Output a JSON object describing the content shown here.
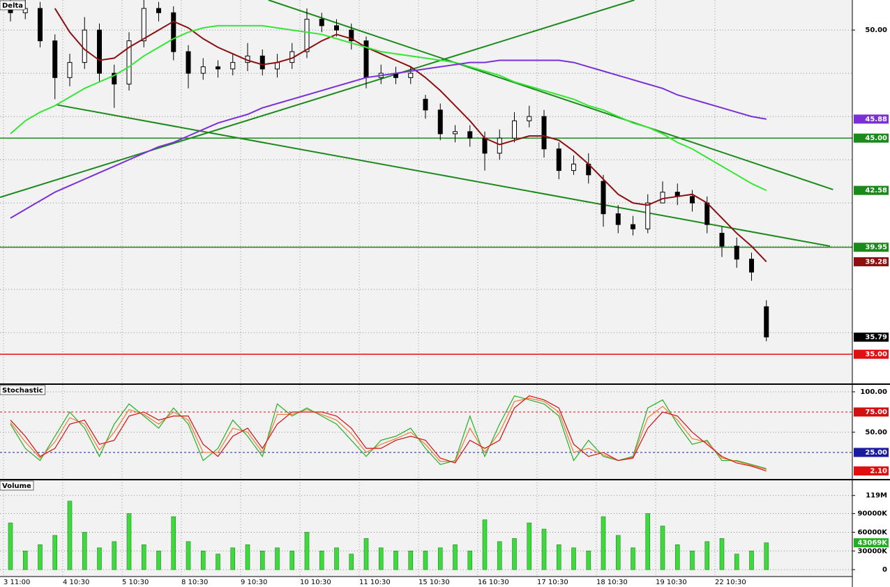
{
  "chart_data": [
    {
      "type": "candlestick",
      "title": "Delta",
      "ylim": [
        33.65,
        51.39
      ],
      "yticks": [
        {
          "value": 50,
          "label": "50.00"
        }
      ],
      "grid_levels": [
        36,
        38,
        40,
        42,
        44,
        46,
        48
      ],
      "up_color": "#ffffff",
      "down_color": "#000000",
      "open": [
        51.2,
        50.8,
        51.0,
        49.5,
        47.8,
        48.5,
        50.0,
        48.0,
        47.5,
        49.5,
        51.0,
        50.8,
        49.0,
        48.0,
        48.3,
        48.2,
        48.5,
        48.8,
        48.2,
        48.5,
        49.0,
        50.5,
        50.2,
        50.0,
        49.5,
        47.8,
        48.0,
        47.8,
        46.8,
        46.3,
        45.2,
        45.3,
        45.0,
        44.3,
        45.0,
        45.8,
        46.0,
        44.5,
        43.5,
        43.8,
        43.0,
        41.5,
        41.0,
        40.8,
        42.0,
        42.5,
        42.3,
        42.0,
        40.6,
        40.0,
        39.4,
        37.2
      ],
      "high": [
        51.6,
        51.4,
        51.3,
        49.8,
        48.9,
        50.6,
        50.3,
        48.4,
        49.9,
        51.5,
        51.3,
        51.1,
        49.3,
        48.7,
        48.6,
        48.9,
        49.4,
        49.1,
        48.9,
        49.4,
        51.0,
        50.8,
        50.5,
        50.3,
        49.7,
        48.4,
        48.3,
        48.3,
        47.0,
        46.6,
        45.6,
        45.6,
        45.3,
        45.4,
        46.2,
        46.5,
        46.3,
        44.8,
        44.2,
        44.3,
        43.3,
        41.9,
        41.4,
        42.4,
        43.0,
        42.9,
        42.6,
        42.3,
        40.9,
        40.4,
        39.7,
        37.5
      ],
      "low": [
        50.4,
        50.5,
        49.2,
        46.8,
        47.4,
        48.2,
        47.6,
        46.4,
        47.2,
        49.2,
        50.4,
        48.6,
        47.3,
        47.7,
        47.8,
        47.9,
        48.1,
        47.9,
        47.8,
        48.2,
        48.7,
        49.9,
        49.7,
        49.1,
        47.3,
        47.5,
        47.5,
        47.5,
        45.9,
        44.9,
        44.8,
        44.6,
        43.5,
        44.0,
        44.8,
        45.5,
        44.1,
        43.1,
        43.3,
        42.9,
        40.9,
        40.6,
        40.5,
        40.6,
        42.1,
        41.9,
        41.6,
        40.6,
        39.5,
        39.0,
        38.4,
        35.6
      ],
      "close": [
        50.8,
        51.0,
        49.5,
        47.8,
        48.5,
        50.0,
        48.0,
        47.5,
        49.5,
        51.0,
        50.8,
        49.0,
        48.0,
        48.3,
        48.2,
        48.5,
        48.8,
        48.2,
        48.5,
        49.0,
        50.5,
        50.2,
        50.0,
        49.5,
        47.8,
        48.0,
        47.8,
        48.0,
        46.3,
        45.2,
        45.3,
        45.0,
        44.3,
        45.0,
        45.8,
        46.0,
        44.5,
        43.5,
        43.8,
        43.3,
        41.5,
        41.0,
        40.8,
        42.0,
        42.5,
        42.3,
        42.0,
        41.0,
        40.0,
        39.4,
        38.8,
        35.8
      ],
      "series": [
        {
          "color": "#8b1010",
          "values": [
            null,
            null,
            null,
            51.0,
            49.9,
            49.1,
            48.6,
            48.7,
            49.2,
            49.6,
            50.0,
            50.4,
            50.1,
            49.6,
            49.2,
            48.9,
            48.6,
            48.4,
            48.5,
            48.7,
            49.1,
            49.5,
            49.8,
            49.6,
            49.2,
            48.9,
            48.6,
            48.3,
            47.8,
            47.2,
            46.5,
            45.8,
            45.0,
            44.7,
            44.9,
            45.1,
            45.1,
            44.9,
            44.4,
            43.8,
            43.1,
            42.4,
            42.0,
            41.9,
            42.2,
            42.3,
            42.4,
            42.0,
            41.3,
            40.6,
            40.0,
            39.28
          ]
        },
        {
          "color": "#33e633",
          "values": [
            45.2,
            45.8,
            46.2,
            46.5,
            46.9,
            47.3,
            47.6,
            47.9,
            48.3,
            48.8,
            49.2,
            49.6,
            49.9,
            50.1,
            50.2,
            50.2,
            50.2,
            50.2,
            50.1,
            50.0,
            49.9,
            49.8,
            49.6,
            49.4,
            49.2,
            49.0,
            48.9,
            48.8,
            48.7,
            48.6,
            48.5,
            48.3,
            48.1,
            47.9,
            47.6,
            47.4,
            47.2,
            47.0,
            46.8,
            46.5,
            46.3,
            46.0,
            45.7,
            45.5,
            45.2,
            44.8,
            44.5,
            44.1,
            43.7,
            43.3,
            42.9,
            42.58
          ]
        },
        {
          "color": "#7b2fd8",
          "values": [
            41.3,
            41.7,
            42.1,
            42.5,
            42.8,
            43.1,
            43.4,
            43.7,
            44.0,
            44.3,
            44.6,
            44.8,
            45.1,
            45.4,
            45.7,
            45.9,
            46.1,
            46.4,
            46.6,
            46.8,
            47.0,
            47.2,
            47.4,
            47.6,
            47.8,
            47.9,
            48.0,
            48.1,
            48.2,
            48.3,
            48.4,
            48.5,
            48.5,
            48.6,
            48.6,
            48.6,
            48.6,
            48.6,
            48.5,
            48.3,
            48.1,
            47.9,
            47.7,
            47.5,
            47.3,
            47.0,
            46.8,
            46.6,
            46.4,
            46.2,
            46.0,
            45.88
          ]
        }
      ],
      "trendlines": [
        {
          "color": "#1a8a1a",
          "x": [
            -0.7,
            42.1
          ],
          "y": [
            42.26,
            51.39
          ]
        },
        {
          "color": "#1a8a1a",
          "x": [
            3.06,
            55.3
          ],
          "y": [
            46.55,
            40.0
          ]
        },
        {
          "color": "#1a8a1a",
          "x": [
            17.4,
            55.5
          ],
          "y": [
            51.39,
            42.62
          ]
        }
      ],
      "markers": [
        {
          "value": 45.88,
          "label": "45.88",
          "color": "#7b2fd8"
        },
        {
          "value": 45,
          "label": "45.00",
          "color": "#1a8a1a",
          "line": "solid"
        },
        {
          "value": 42.58,
          "label": "42.58",
          "color": "#1a8a1a"
        },
        {
          "value": 39.95,
          "label": "39.95",
          "color": "#1a8a1a",
          "line": "solid"
        },
        {
          "value": 39.28,
          "label": "39.28",
          "color": "#8b1010"
        },
        {
          "value": 35.79,
          "label": "35.79",
          "color": "#000000"
        },
        {
          "value": 35,
          "label": "35.00",
          "color": "#e01010",
          "line": "solid"
        }
      ]
    },
    {
      "type": "line",
      "title": "Stochastic",
      "ylim": [
        -7.8,
        108.6
      ],
      "yticks": [
        {
          "value": 100,
          "label": "100.00"
        },
        {
          "value": 50,
          "label": "50.00"
        }
      ],
      "series": [
        {
          "color": "#22b022",
          "values": [
            60,
            30,
            15,
            45,
            75,
            55,
            20,
            60,
            85,
            70,
            55,
            80,
            60,
            15,
            30,
            65,
            45,
            20,
            85,
            70,
            80,
            70,
            60,
            40,
            20,
            40,
            45,
            55,
            30,
            10,
            15,
            70,
            20,
            60,
            95,
            90,
            85,
            70,
            15,
            40,
            20,
            15,
            20,
            80,
            90,
            60,
            35,
            40,
            15,
            15,
            10,
            5
          ]
        },
        {
          "color": "#f07a3a",
          "values": [
            62,
            38,
            18,
            38,
            68,
            60,
            28,
            50,
            78,
            72,
            60,
            75,
            65,
            25,
            25,
            55,
            50,
            25,
            72,
            72,
            78,
            72,
            65,
            48,
            25,
            35,
            42,
            50,
            35,
            14,
            14,
            55,
            25,
            50,
            88,
            92,
            88,
            75,
            25,
            30,
            22,
            15,
            19,
            68,
            82,
            65,
            42,
            38,
            18,
            14,
            9,
            4
          ]
        },
        {
          "color": "#d01010",
          "values": [
            65,
            45,
            20,
            30,
            60,
            65,
            35,
            40,
            70,
            75,
            65,
            70,
            70,
            35,
            20,
            45,
            55,
            30,
            60,
            75,
            75,
            75,
            70,
            55,
            30,
            30,
            40,
            45,
            40,
            18,
            12,
            40,
            30,
            40,
            80,
            95,
            90,
            80,
            35,
            20,
            25,
            15,
            18,
            55,
            75,
            70,
            50,
            35,
            20,
            12,
            8,
            2.1
          ]
        }
      ],
      "markers": [
        {
          "value": 75,
          "label": "75.00",
          "color": "#d01010",
          "line": "dashed"
        },
        {
          "value": 25,
          "label": "25.00",
          "color": "#1a1aa0",
          "line": "dashed"
        },
        {
          "value": 2.1,
          "label": "2.10",
          "color": "#e01010"
        }
      ]
    },
    {
      "type": "bar",
      "title": "Volume",
      "ylim": [
        -11100,
        143300
      ],
      "yticks": [
        {
          "value": 119000,
          "label": "119M"
        },
        {
          "value": 90000,
          "label": "90000K"
        },
        {
          "value": 60000,
          "label": "60000K"
        },
        {
          "value": 30000,
          "label": "30000K"
        },
        0
      ],
      "color": "#3fd83f",
      "categories": [
        "3 11:00",
        null,
        null,
        null,
        "4 10:30",
        null,
        null,
        null,
        "5 10:30",
        null,
        null,
        null,
        "8 10:30",
        null,
        null,
        null,
        "9 10:30",
        null,
        null,
        null,
        "10 10:30",
        null,
        null,
        null,
        "11 10:30",
        null,
        null,
        null,
        "15 10:30",
        null,
        null,
        null,
        "16 10:30",
        null,
        null,
        null,
        "17 10:30",
        null,
        null,
        null,
        "18 10:30",
        null,
        null,
        null,
        "19 10:30",
        null,
        null,
        null,
        "22 10:30",
        null,
        null,
        null
      ],
      "values": [
        75000,
        30000,
        40000,
        55000,
        110000,
        60000,
        35000,
        45000,
        90000,
        40000,
        30000,
        85000,
        45000,
        30000,
        25000,
        35000,
        40000,
        30000,
        35000,
        30000,
        60000,
        30000,
        35000,
        25000,
        50000,
        35000,
        30000,
        30000,
        30000,
        35000,
        40000,
        30000,
        80000,
        45000,
        50000,
        75000,
        65000,
        40000,
        35000,
        30000,
        85000,
        55000,
        35000,
        90000,
        70000,
        40000,
        30000,
        45000,
        50000,
        25000,
        30000,
        43069
      ],
      "markers": [
        {
          "value": 43069,
          "label": "43069K",
          "color": "#22b022"
        }
      ]
    }
  ]
}
